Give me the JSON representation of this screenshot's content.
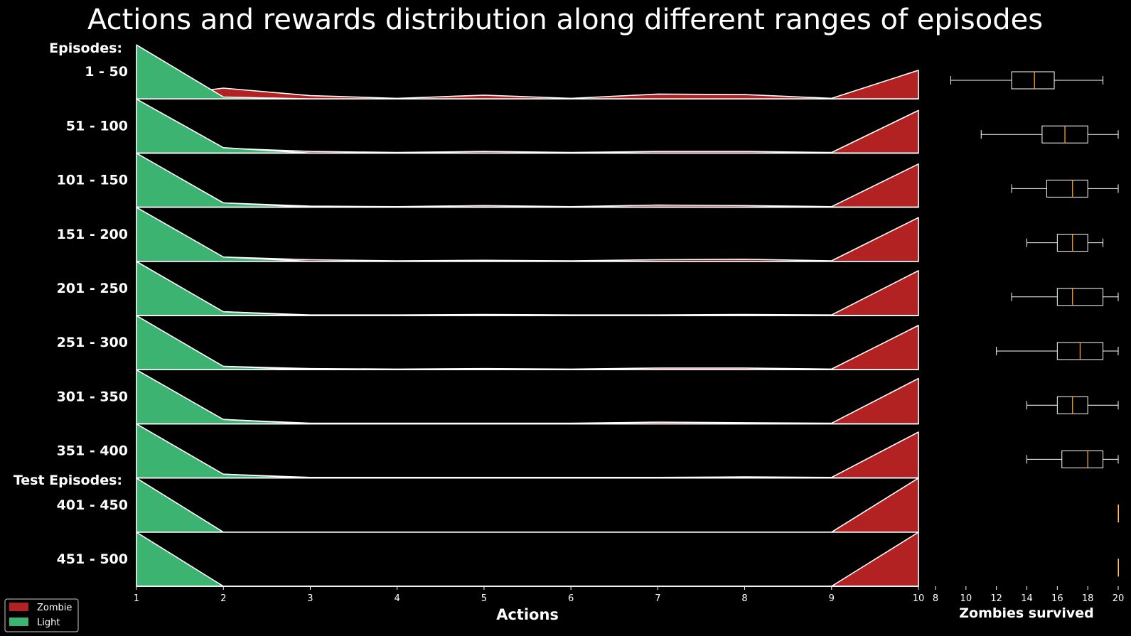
{
  "chart_data": [
    {
      "type": "ridgeline-area",
      "title": "Actions and rewards distribution along different ranges of episodes",
      "xlabel": "Actions",
      "x": [
        1,
        2,
        3,
        4,
        5,
        6,
        7,
        8,
        9,
        10
      ],
      "xlim": [
        1,
        10
      ],
      "group_headers": [
        "Episodes:",
        "Test Episodes:"
      ],
      "rows": [
        {
          "label": "1 - 50",
          "group": 0,
          "light": [
            1,
            0.035,
            0,
            0,
            0,
            0,
            0,
            0,
            0,
            0
          ],
          "zombie": [
            0,
            0.2,
            0.06,
            0.01,
            0.07,
            0.01,
            0.09,
            0.08,
            0.01,
            0.53
          ]
        },
        {
          "label": "51 - 100",
          "group": 0,
          "light": [
            1,
            0.1,
            0,
            0,
            0,
            0,
            0,
            0,
            0,
            0
          ],
          "zombie": [
            0,
            0.09,
            0.03,
            0.01,
            0.03,
            0.01,
            0.03,
            0.03,
            0.01,
            0.79
          ]
        },
        {
          "label": "101 - 150",
          "group": 0,
          "light": [
            1,
            0.08,
            0,
            0,
            0,
            0,
            0,
            0,
            0,
            0
          ],
          "zombie": [
            0,
            0.08,
            0.02,
            0.01,
            0.03,
            0.01,
            0.04,
            0.03,
            0.01,
            0.8
          ]
        },
        {
          "label": "151 - 200",
          "group": 0,
          "light": [
            1,
            0.08,
            0,
            0,
            0,
            0,
            0,
            0,
            0,
            0
          ],
          "zombie": [
            0,
            0.08,
            0.03,
            0.01,
            0.02,
            0.01,
            0.03,
            0.04,
            0.01,
            0.81
          ]
        },
        {
          "label": "201 - 250",
          "group": 0,
          "light": [
            1,
            0.07,
            0,
            0,
            0,
            0,
            0,
            0,
            0,
            0
          ],
          "zombie": [
            0,
            0.07,
            0.01,
            0.01,
            0.02,
            0.01,
            0.01,
            0.02,
            0.01,
            0.83
          ]
        },
        {
          "label": "251 - 300",
          "group": 0,
          "light": [
            1,
            0.06,
            0,
            0,
            0,
            0,
            0,
            0,
            0,
            0
          ],
          "zombie": [
            0,
            0.06,
            0.02,
            0.01,
            0.02,
            0.01,
            0.03,
            0.03,
            0.01,
            0.82
          ]
        },
        {
          "label": "301 - 350",
          "group": 0,
          "light": [
            1,
            0.08,
            0,
            0,
            0,
            0,
            0,
            0,
            0,
            0
          ],
          "zombie": [
            0,
            0.08,
            0.01,
            0.01,
            0.01,
            0.01,
            0.03,
            0.02,
            0.01,
            0.84
          ]
        },
        {
          "label": "351 - 400",
          "group": 0,
          "light": [
            1,
            0.07,
            0,
            0,
            0,
            0,
            0,
            0,
            0,
            0
          ],
          "zombie": [
            0,
            0.07,
            0.01,
            0.01,
            0.01,
            0.01,
            0.01,
            0.02,
            0.01,
            0.85
          ]
        },
        {
          "label": "401 - 450",
          "group": 1,
          "light": [
            1,
            0,
            0,
            0,
            0,
            0,
            0,
            0,
            0,
            0
          ],
          "zombie": [
            0,
            0,
            0,
            0,
            0,
            0,
            0,
            0,
            0,
            1
          ]
        },
        {
          "label": "451 - 500",
          "group": 1,
          "light": [
            1,
            0,
            0,
            0,
            0,
            0,
            0,
            0,
            0,
            0
          ],
          "zombie": [
            0,
            0,
            0,
            0,
            0,
            0,
            0,
            0,
            0,
            1
          ]
        }
      ],
      "legend": {
        "position": "lower-left",
        "entries": [
          {
            "name": "Zombie",
            "color": "#b22222"
          },
          {
            "name": "Light",
            "color": "#3cb371"
          }
        ]
      },
      "colors": {
        "zombie": "#b22222",
        "light": "#3cb371",
        "outline": "#ffffff",
        "background": "#000000"
      }
    },
    {
      "type": "box",
      "xlabel": "Zombies survived",
      "xlim": [
        8,
        20
      ],
      "xticks": [
        8,
        10,
        12,
        14,
        16,
        18,
        20
      ],
      "boxes": [
        {
          "label": "1 - 50",
          "whislo": 9,
          "q1": 13,
          "med": 14.5,
          "q3": 15.8,
          "whishi": 19
        },
        {
          "label": "51 - 100",
          "whislo": 11,
          "q1": 15,
          "med": 16.5,
          "q3": 18,
          "whishi": 20
        },
        {
          "label": "101 - 150",
          "whislo": 13,
          "q1": 15.3,
          "med": 17,
          "q3": 18,
          "whishi": 20
        },
        {
          "label": "151 - 200",
          "whislo": 14,
          "q1": 16,
          "med": 17,
          "q3": 18,
          "whishi": 19
        },
        {
          "label": "201 - 250",
          "whislo": 13,
          "q1": 16,
          "med": 17,
          "q3": 19,
          "whishi": 20
        },
        {
          "label": "251 - 300",
          "whislo": 12,
          "q1": 16,
          "med": 17.5,
          "q3": 19,
          "whishi": 20
        },
        {
          "label": "301 - 350",
          "whislo": 14,
          "q1": 16,
          "med": 17,
          "q3": 18,
          "whishi": 20
        },
        {
          "label": "351 - 400",
          "whislo": 14,
          "q1": 16.3,
          "med": 18,
          "q3": 19,
          "whishi": 20
        },
        {
          "label": "401 - 450",
          "whislo": 20,
          "q1": 20,
          "med": 20,
          "q3": 20,
          "whishi": 20
        },
        {
          "label": "451 - 500",
          "whislo": 20,
          "q1": 20,
          "med": 20,
          "q3": 20,
          "whishi": 20
        }
      ],
      "colors": {
        "box": "#ffffff",
        "median": "#ff9f1c"
      }
    }
  ]
}
